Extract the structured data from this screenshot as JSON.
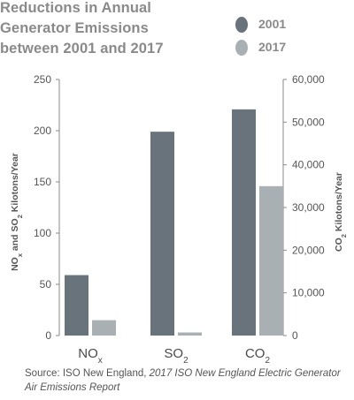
{
  "chart_data": {
    "type": "bar",
    "title_lines": [
      "Reductions in Annual",
      "Generator Emissions",
      "between 2001 and 2017"
    ],
    "categories": [
      {
        "base": "NO",
        "sub": "x"
      },
      {
        "base": "SO",
        "sub": "2"
      },
      {
        "base": "CO",
        "sub": "2"
      }
    ],
    "series": [
      {
        "name": "2001",
        "color": "#68737b",
        "values": [
          59,
          199,
          53000
        ]
      },
      {
        "name": "2017",
        "color": "#a9b0b4",
        "values": [
          15,
          3,
          35000
        ]
      }
    ],
    "axis_for_category": [
      "left",
      "left",
      "right"
    ],
    "left_axis": {
      "label_parts": [
        "NO",
        "x",
        " and SO",
        "2",
        " Kilotons/Year"
      ],
      "ylim": [
        0,
        250
      ],
      "ticks": [
        "0",
        "50",
        "100",
        "150",
        "200",
        "250"
      ]
    },
    "right_axis": {
      "label_parts": [
        "CO",
        "2",
        " Kilotons/Year"
      ],
      "ylim": [
        0,
        60000
      ],
      "ticks": [
        "0",
        "10,000",
        "20,000",
        "30,000",
        "40,000",
        "50,000",
        "60,000"
      ]
    },
    "legend_position": "top-right",
    "grid": false
  },
  "source": {
    "prefix": "Source: ISO New England, ",
    "italic": "2017 ISO New England Electric Generator Air Emissions Report"
  }
}
